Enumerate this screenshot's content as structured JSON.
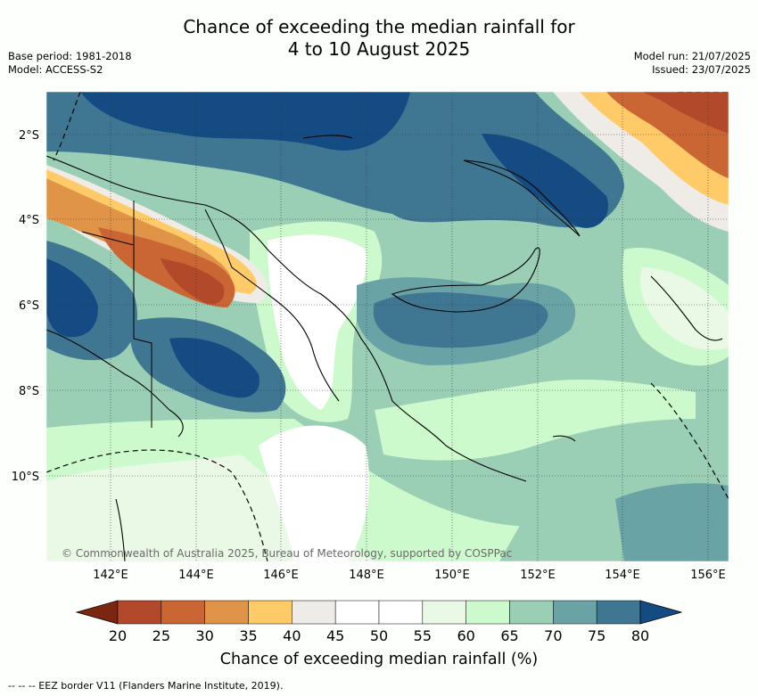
{
  "header": {
    "title_line1": "Chance of exceeding the median rainfall for",
    "title_line2": "4 to 10 August 2025",
    "base_period": "Base period: 1981-2018",
    "model": "Model: ACCESS-S2",
    "model_run": "Model run: 21/07/2025",
    "issued": "Issued: 23/07/2025"
  },
  "map": {
    "lat_labels": [
      "2°S",
      "4°S",
      "6°S",
      "8°S",
      "10°S"
    ],
    "lon_labels": [
      "142°E",
      "144°E",
      "146°E",
      "148°E",
      "150°E",
      "152°E",
      "154°E",
      "156°E"
    ],
    "copyright": "© Commonwealth of Australia 2025, Bureau of Meteorology, supported by COSPPac"
  },
  "colorbar": {
    "labels": [
      "20",
      "25",
      "30",
      "35",
      "40",
      "45",
      "50",
      "55",
      "60",
      "65",
      "70",
      "75",
      "80"
    ],
    "colors": [
      "#7a2610",
      "#b1492a",
      "#ca6633",
      "#e09448",
      "#ffcb68",
      "#efebe6",
      "#ffffff",
      "#ffffff",
      "#eaf8e6",
      "#ccfacc",
      "#9acfb5",
      "#6aa3a6",
      "#3f7793",
      "#144b83"
    ],
    "title": "Chance of exceeding median rainfall (%)"
  },
  "footnote": "--  --  -- EEZ border V11 (Flanders Marine Institute, 2019)."
}
